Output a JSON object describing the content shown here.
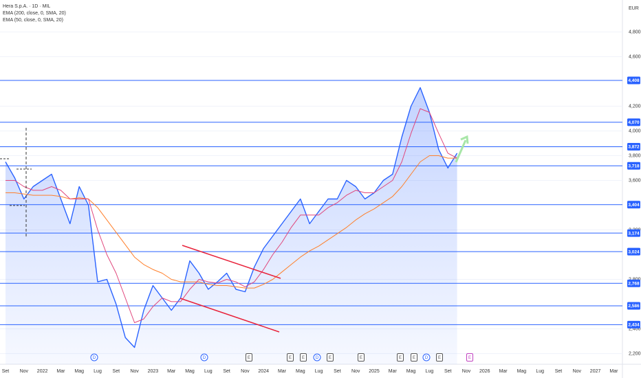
{
  "chart_data": {
    "type": "line",
    "title": "Hera S.p.A. · 1D · MIL",
    "currency": "EUR",
    "categories": [
      "Set",
      null,
      "Nov",
      null,
      "2022",
      null,
      "Mar",
      null,
      "Mag",
      null,
      "Lug",
      null,
      "Set",
      null,
      "Nov",
      null,
      "2023",
      null,
      "Mar",
      null,
      "Mag",
      null,
      "Lug",
      null,
      "Set",
      null,
      "Nov",
      null,
      "2024",
      null,
      "Mar",
      null,
      "Mag",
      null,
      "Lug",
      null,
      "Set",
      null,
      "Nov",
      null,
      "2025",
      null,
      "Mar",
      null,
      "Mag",
      null,
      "Lug",
      null,
      "Set",
      null,
      "Nov",
      null,
      "2026",
      null,
      "Mar",
      null,
      "Mag",
      null,
      "Lug",
      null,
      "Set",
      null,
      "Nov",
      null,
      "2027",
      null,
      "Mar"
    ],
    "series": [
      {
        "color": "#2962ff",
        "values": [
          3.75,
          3.62,
          3.45,
          3.55,
          3.6,
          3.65,
          3.45,
          3.25,
          3.55,
          3.4,
          2.78,
          2.8,
          2.6,
          2.33,
          2.25,
          2.55,
          2.75,
          2.65,
          2.55,
          2.65,
          2.95,
          2.85,
          2.72,
          2.78,
          2.85,
          2.72,
          2.7,
          2.9,
          3.05,
          3.15,
          3.25,
          3.35,
          3.45,
          3.25,
          3.35,
          3.45,
          3.45,
          3.6,
          3.55,
          3.45,
          3.5,
          3.6,
          3.65,
          3.95,
          4.2,
          4.35,
          4.15,
          3.85,
          3.7,
          3.82,
          null,
          null,
          null,
          null,
          null,
          null,
          null,
          null,
          null,
          null,
          null,
          null,
          null,
          null,
          null,
          null,
          null
        ]
      },
      {
        "name": "EMA (200, close, 0, SMA, 20)",
        "color": "#ff7f2a",
        "values": [
          3.5,
          3.5,
          3.49,
          3.48,
          3.48,
          3.48,
          3.47,
          3.45,
          3.46,
          3.45,
          3.38,
          3.28,
          3.18,
          3.08,
          2.98,
          2.92,
          2.88,
          2.85,
          2.8,
          2.78,
          2.78,
          2.78,
          2.76,
          2.75,
          2.75,
          2.74,
          2.73,
          2.73,
          2.76,
          2.8,
          2.86,
          2.92,
          2.98,
          3.03,
          3.07,
          3.12,
          3.17,
          3.22,
          3.28,
          3.33,
          3.37,
          3.42,
          3.47,
          3.55,
          3.65,
          3.75,
          3.8,
          3.8,
          3.78,
          3.78,
          null,
          null,
          null,
          null,
          null,
          null,
          null,
          null,
          null,
          null,
          null,
          null,
          null,
          null,
          null,
          null,
          null
        ]
      },
      {
        "name": "EMA (50, close, 0, SMA, 20)",
        "color": "#e0457b",
        "values": [
          3.6,
          3.6,
          3.55,
          3.52,
          3.52,
          3.55,
          3.52,
          3.45,
          3.45,
          3.45,
          3.2,
          3.0,
          2.85,
          2.65,
          2.45,
          2.48,
          2.58,
          2.65,
          2.62,
          2.62,
          2.72,
          2.8,
          2.78,
          2.77,
          2.8,
          2.78,
          2.74,
          2.78,
          2.88,
          3.0,
          3.1,
          3.22,
          3.32,
          3.32,
          3.32,
          3.38,
          3.42,
          3.48,
          3.52,
          3.5,
          3.5,
          3.55,
          3.6,
          3.75,
          3.98,
          4.18,
          4.15,
          3.98,
          3.82,
          3.78,
          null,
          null,
          null,
          null,
          null,
          null,
          null,
          null,
          null,
          null,
          null,
          null,
          null,
          null,
          null,
          null,
          null
        ]
      }
    ],
    "ylim": [
      2.114,
      5.058
    ],
    "yticks": [
      {
        "value": 4.8,
        "label": "4,800"
      },
      {
        "value": 4.6,
        "label": "4,600"
      },
      {
        "value": 4.2,
        "label": "4,200"
      },
      {
        "value": 4.0,
        "label": "4,000"
      },
      {
        "value": 3.8,
        "label": "3,800"
      },
      {
        "value": 3.6,
        "label": "3,600"
      },
      {
        "value": 3.2,
        "label": "3,200"
      },
      {
        "value": 2.8,
        "label": "2,800"
      },
      {
        "value": 2.4,
        "label": "2,400"
      },
      {
        "value": 2.2,
        "label": "2,200"
      }
    ],
    "levels": [
      {
        "value": 4.408,
        "label": "4,408"
      },
      {
        "value": 4.07,
        "label": "4,070"
      },
      {
        "value": 3.872,
        "label": "3,872"
      },
      {
        "value": 3.718,
        "label": "3,718"
      },
      {
        "value": 3.404,
        "label": "3,404"
      },
      {
        "value": 3.174,
        "label": "3,174"
      },
      {
        "value": 3.024,
        "label": "3,024"
      },
      {
        "value": 2.768,
        "label": "2,768"
      },
      {
        "value": 2.586,
        "label": "2,586"
      },
      {
        "value": 2.434,
        "label": "2,434"
      }
    ],
    "level_color": "#2962ff",
    "grid": true,
    "events": [
      {
        "label": "D",
        "color": "#2962ff"
      },
      {
        "label": "D",
        "color": "#2962ff"
      },
      {
        "label": "E",
        "color": "#555"
      },
      {
        "label": "E",
        "color": "#555"
      },
      {
        "label": "E",
        "color": "#555"
      },
      {
        "label": "D",
        "color": "#2962ff"
      },
      {
        "label": "E",
        "color": "#555"
      },
      {
        "label": "E",
        "color": "#555"
      },
      {
        "label": "E",
        "color": "#555"
      },
      {
        "label": "E",
        "color": "#555"
      },
      {
        "label": "D",
        "color": "#2962ff"
      },
      {
        "label": "E",
        "color": "#555"
      },
      {
        "label": "E",
        "color": "#c040c0"
      }
    ]
  }
}
